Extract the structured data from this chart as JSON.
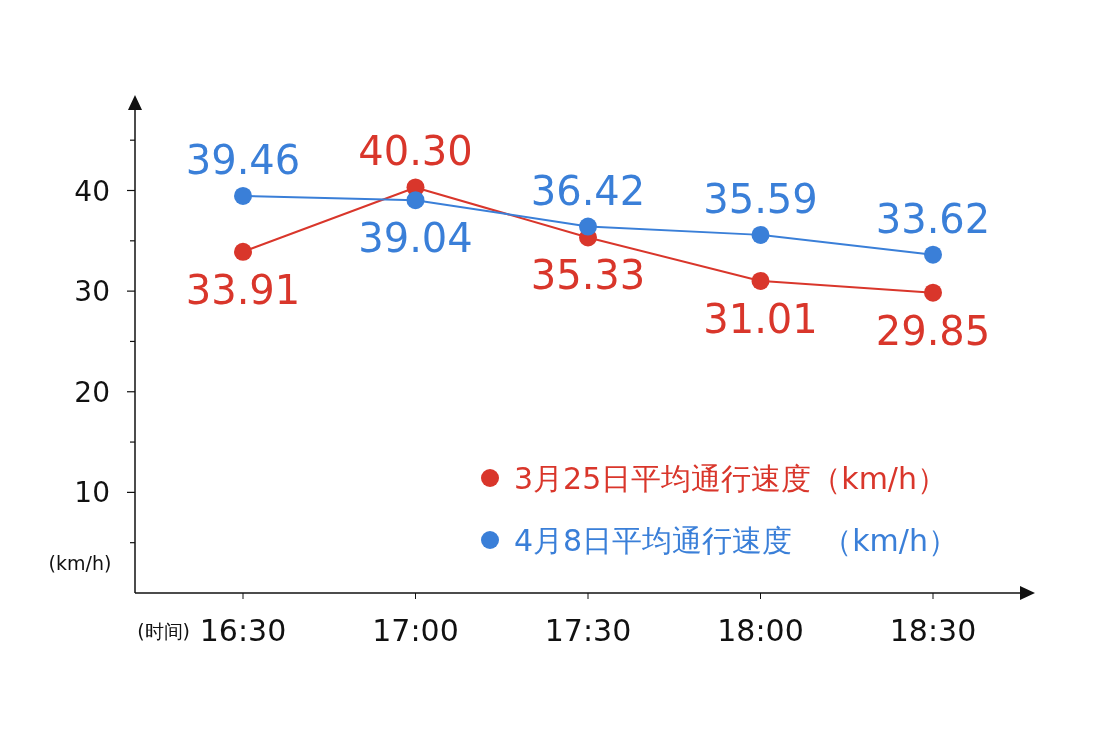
{
  "chart_data": {
    "type": "line",
    "xlabel": "(时间)",
    "ylabel": "(km/h)",
    "categories": [
      "16:30",
      "17:00",
      "17:30",
      "18:00",
      "18:30"
    ],
    "series": [
      {
        "name": "3月25日平均通行速度（km/h）",
        "color": "#d9362b",
        "values": [
          33.91,
          40.3,
          35.33,
          31.01,
          29.85
        ],
        "value_labels": [
          "33.91",
          "40.30",
          "35.33",
          "31.01",
          "29.85"
        ]
      },
      {
        "name": "4月8日平均通行速度　（km/h）",
        "color": "#3a7fd8",
        "values": [
          39.46,
          39.04,
          36.42,
          35.59,
          33.62
        ],
        "value_labels": [
          "39.46",
          "39.04",
          "36.42",
          "35.59",
          "33.62"
        ]
      }
    ],
    "ylim": [
      0,
      48
    ],
    "yticks": [
      {
        "value": 5,
        "label": null
      },
      10,
      {
        "value": 15,
        "label": null
      },
      20,
      {
        "value": 25,
        "label": null
      },
      30,
      {
        "value": 35,
        "label": null
      },
      40,
      {
        "value": 45,
        "label": null
      }
    ],
    "marker": "circle",
    "line_style": "solid",
    "grid": false,
    "legend": "bottom right"
  }
}
